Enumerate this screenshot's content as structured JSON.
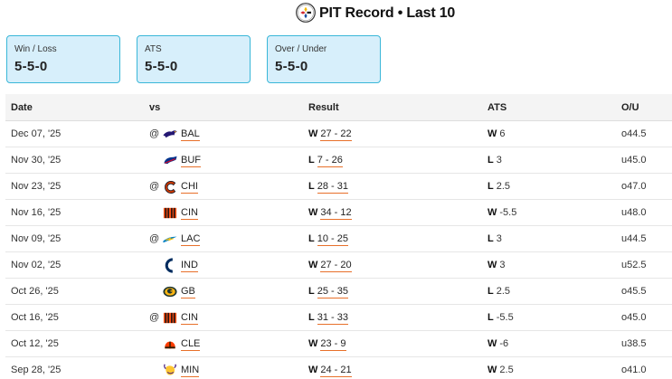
{
  "header": {
    "title": "PIT Record • Last 10",
    "logo_icon": "steelers-logo-icon"
  },
  "cards": [
    {
      "label": "Win / Loss",
      "value": "5-5-0"
    },
    {
      "label": "ATS",
      "value": "5-5-0"
    },
    {
      "label": "Over / Under",
      "value": "5-5-0"
    }
  ],
  "table": {
    "headers": {
      "date": "Date",
      "vs": "vs",
      "result": "Result",
      "ats": "ATS",
      "ou": "O/U"
    },
    "rows": [
      {
        "date": "Dec 07, '25",
        "at": "@",
        "team": "BAL",
        "icon": "ravens-logo-icon",
        "wl": "W",
        "score": "27 - 22",
        "ats_wl": "W",
        "ats_line": "6",
        "ou": "o44.5"
      },
      {
        "date": "Nov 30, '25",
        "at": "",
        "team": "BUF",
        "icon": "bills-logo-icon",
        "wl": "L",
        "score": "7 - 26",
        "ats_wl": "L",
        "ats_line": "3",
        "ou": "u45.0"
      },
      {
        "date": "Nov 23, '25",
        "at": "@",
        "team": "CHI",
        "icon": "bears-logo-icon",
        "wl": "L",
        "score": "28 - 31",
        "ats_wl": "L",
        "ats_line": "2.5",
        "ou": "o47.0"
      },
      {
        "date": "Nov 16, '25",
        "at": "",
        "team": "CIN",
        "icon": "bengals-logo-icon",
        "wl": "W",
        "score": "34 - 12",
        "ats_wl": "W",
        "ats_line": "-5.5",
        "ou": "u48.0"
      },
      {
        "date": "Nov 09, '25",
        "at": "@",
        "team": "LAC",
        "icon": "chargers-logo-icon",
        "wl": "L",
        "score": "10 - 25",
        "ats_wl": "L",
        "ats_line": "3",
        "ou": "u44.5"
      },
      {
        "date": "Nov 02, '25",
        "at": "",
        "team": "IND",
        "icon": "colts-logo-icon",
        "wl": "W",
        "score": "27 - 20",
        "ats_wl": "W",
        "ats_line": "3",
        "ou": "u52.5"
      },
      {
        "date": "Oct 26, '25",
        "at": "",
        "team": "GB",
        "icon": "packers-logo-icon",
        "wl": "L",
        "score": "25 - 35",
        "ats_wl": "L",
        "ats_line": "2.5",
        "ou": "o45.5"
      },
      {
        "date": "Oct 16, '25",
        "at": "@",
        "team": "CIN",
        "icon": "bengals-logo-icon",
        "wl": "L",
        "score": "31 - 33",
        "ats_wl": "L",
        "ats_line": "-5.5",
        "ou": "o45.0"
      },
      {
        "date": "Oct 12, '25",
        "at": "",
        "team": "CLE",
        "icon": "browns-logo-icon",
        "wl": "W",
        "score": "23 - 9",
        "ats_wl": "W",
        "ats_line": "-6",
        "ou": "u38.5"
      },
      {
        "date": "Sep 28, '25",
        "at": "",
        "team": "MIN",
        "icon": "vikings-logo-icon",
        "wl": "W",
        "score": "24 - 21",
        "ats_wl": "W",
        "ats_line": "2.5",
        "ou": "o41.0"
      }
    ]
  },
  "colors": {
    "card_bg": "#d7effb",
    "card_border": "#3ab7d8",
    "underline": "#e8702a",
    "header_bg": "#f4f4f4"
  }
}
